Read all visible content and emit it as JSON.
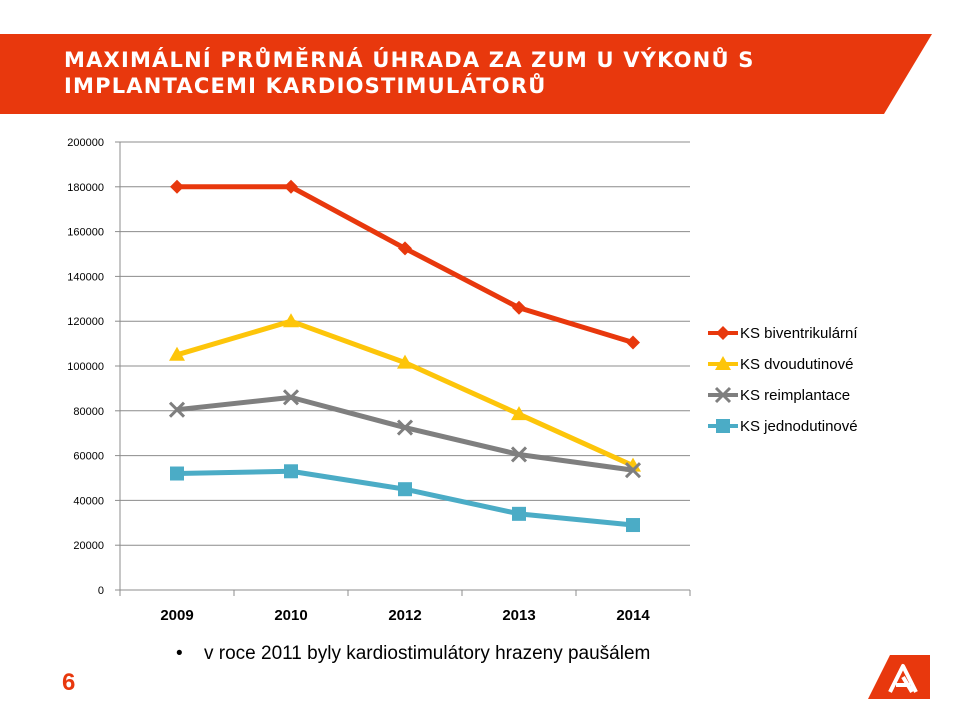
{
  "slide": {
    "title": "Maximální průměrná úhrada za ZUM u výkonů s implantacemi kardiostimulátorů",
    "bullet": "v roce 2011 byly kardiostimulátory hrazeny paušálem",
    "bullet_symbol": "•",
    "page_number": "6"
  },
  "colors": {
    "accent": "#e8380d",
    "gridline": "#8c8c8c"
  },
  "chart_data": {
    "type": "line",
    "title": "",
    "xlabel": "",
    "ylabel": "",
    "categories": [
      "2009",
      "2010",
      "2012",
      "2013",
      "2014"
    ],
    "ylim": [
      0,
      200000
    ],
    "yticks": [
      0,
      20000,
      40000,
      60000,
      80000,
      100000,
      120000,
      140000,
      160000,
      180000,
      200000
    ],
    "grid": true,
    "legend_position": "right",
    "series": [
      {
        "name": "KS biventrikulární",
        "values": [
          180000,
          180000,
          152500,
          126000,
          110500
        ],
        "color": "#e8380d",
        "marker": "diamond"
      },
      {
        "name": "KS dvoudutinové",
        "values": [
          105000,
          120000,
          101500,
          78500,
          55500
        ],
        "color": "#fdc50a",
        "marker": "triangle"
      },
      {
        "name": "KS reimplantace",
        "values": [
          80500,
          86000,
          72500,
          60500,
          53500
        ],
        "color": "#7f7f7f",
        "marker": "x"
      },
      {
        "name": "KS jednodutinové",
        "values": [
          52000,
          53000,
          45000,
          34000,
          29000
        ],
        "color": "#4bacc6",
        "marker": "square"
      }
    ]
  }
}
